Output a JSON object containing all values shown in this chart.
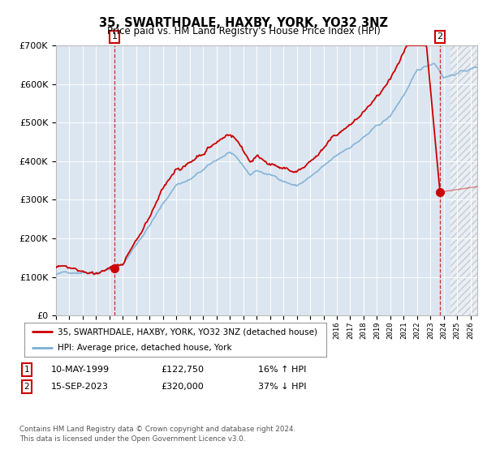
{
  "title": "35, SWARTHDALE, HAXBY, YORK, YO32 3NZ",
  "subtitle": "Price paid vs. HM Land Registry's House Price Index (HPI)",
  "legend_line1": "35, SWARTHDALE, HAXBY, YORK, YO32 3NZ (detached house)",
  "legend_line2": "HPI: Average price, detached house, York",
  "footer": "Contains HM Land Registry data © Crown copyright and database right 2024.\nThis data is licensed under the Open Government Licence v3.0.",
  "sale1_date": "10-MAY-1999",
  "sale1_price": "£122,750",
  "sale1_hpi": "16% ↑ HPI",
  "sale2_date": "15-SEP-2023",
  "sale2_price": "£320,000",
  "sale2_hpi": "37% ↓ HPI",
  "hpi_color": "#7bafd4",
  "price_color": "#cc0000",
  "bg_color": "#dce6f1",
  "ylim": [
    0,
    700000
  ],
  "xlim_start": 1995.0,
  "xlim_end": 2026.5,
  "sale1_year": 1999.36,
  "sale2_year": 2023.71,
  "sale1_value": 122750,
  "sale2_value": 320000,
  "future_start": 2024.5
}
